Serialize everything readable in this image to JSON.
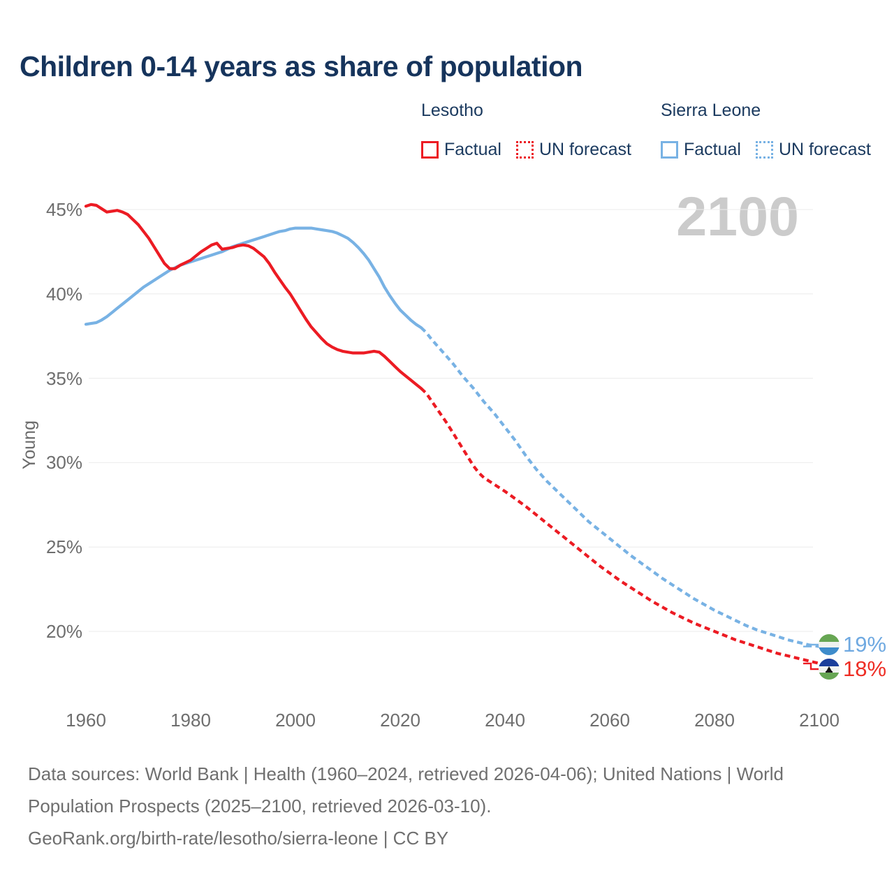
{
  "title": "Children 0-14 years as share of population",
  "watermark": "2100",
  "colors": {
    "lesotho": "#EC1B23",
    "sierra_leone": "#78B2E4",
    "title_navy": "#16345C",
    "axis_gray": "#6E6E6E",
    "watermark_gray": "#CBCBCB",
    "gridline": "#EBEBEB",
    "end_label_blue": "#6FA9E1",
    "end_label_red": "#EE2D24"
  },
  "legend": {
    "lesotho": {
      "title": "Lesotho",
      "factual": "Factual",
      "forecast": "UN forecast"
    },
    "sierra_leone": {
      "title": "Sierra Leone",
      "factual": "Factual",
      "forecast": "UN forecast"
    }
  },
  "chart_data": {
    "type": "line",
    "title": "Children 0-14 years as share of population",
    "xlabel": "",
    "ylabel": "Young",
    "xlim": [
      1960,
      2100
    ],
    "ylim": [
      17.5,
      46
    ],
    "grid": "horizontal",
    "legend_position": "top-right",
    "yticks": [
      {
        "value": 45,
        "label": "45%"
      },
      {
        "value": 40,
        "label": "40%"
      },
      {
        "value": 35,
        "label": "35%"
      },
      {
        "value": 30,
        "label": "30%"
      },
      {
        "value": 25,
        "label": "25%"
      },
      {
        "value": 20,
        "label": "20%"
      }
    ],
    "xticks": [
      {
        "value": 1960,
        "label": "1960"
      },
      {
        "value": 1980,
        "label": "1980"
      },
      {
        "value": 2000,
        "label": "2000"
      },
      {
        "value": 2020,
        "label": "2020"
      },
      {
        "value": 2040,
        "label": "2040"
      },
      {
        "value": 2060,
        "label": "2060"
      },
      {
        "value": 2080,
        "label": "2080"
      },
      {
        "value": 2100,
        "label": "2100"
      }
    ],
    "series": [
      {
        "id": "sierra-leone-factual",
        "name": "Sierra Leone — Factual",
        "color": "#78B2E4",
        "style": "solid",
        "points": [
          [
            1960,
            38.2
          ],
          [
            1961,
            38.25
          ],
          [
            1962,
            38.3
          ],
          [
            1963,
            38.45
          ],
          [
            1964,
            38.65
          ],
          [
            1965,
            38.9
          ],
          [
            1966,
            39.15
          ],
          [
            1967,
            39.4
          ],
          [
            1968,
            39.65
          ],
          [
            1969,
            39.9
          ],
          [
            1970,
            40.15
          ],
          [
            1971,
            40.4
          ],
          [
            1972,
            40.6
          ],
          [
            1973,
            40.8
          ],
          [
            1974,
            41.0
          ],
          [
            1975,
            41.2
          ],
          [
            1976,
            41.4
          ],
          [
            1977,
            41.55
          ],
          [
            1978,
            41.7
          ],
          [
            1979,
            41.8
          ],
          [
            1980,
            41.9
          ],
          [
            1981,
            42.0
          ],
          [
            1982,
            42.1
          ],
          [
            1983,
            42.2
          ],
          [
            1984,
            42.3
          ],
          [
            1985,
            42.4
          ],
          [
            1986,
            42.5
          ],
          [
            1987,
            42.65
          ],
          [
            1988,
            42.8
          ],
          [
            1989,
            42.9
          ],
          [
            1990,
            43.0
          ],
          [
            1991,
            43.1
          ],
          [
            1992,
            43.2
          ],
          [
            1993,
            43.3
          ],
          [
            1994,
            43.4
          ],
          [
            1995,
            43.5
          ],
          [
            1996,
            43.6
          ],
          [
            1997,
            43.7
          ],
          [
            1998,
            43.75
          ],
          [
            1999,
            43.85
          ],
          [
            2000,
            43.9
          ],
          [
            2001,
            43.9
          ],
          [
            2002,
            43.9
          ],
          [
            2003,
            43.9
          ],
          [
            2004,
            43.85
          ],
          [
            2005,
            43.8
          ],
          [
            2006,
            43.75
          ],
          [
            2007,
            43.7
          ],
          [
            2008,
            43.6
          ],
          [
            2009,
            43.45
          ],
          [
            2010,
            43.3
          ],
          [
            2011,
            43.05
          ],
          [
            2012,
            42.75
          ],
          [
            2013,
            42.4
          ],
          [
            2014,
            42.0
          ],
          [
            2015,
            41.5
          ],
          [
            2016,
            41.0
          ],
          [
            2017,
            40.4
          ],
          [
            2018,
            39.9
          ],
          [
            2019,
            39.45
          ],
          [
            2020,
            39.05
          ],
          [
            2021,
            38.75
          ],
          [
            2022,
            38.45
          ],
          [
            2023,
            38.2
          ],
          [
            2024,
            38.0
          ]
        ]
      },
      {
        "id": "sierra-leone-forecast",
        "name": "Sierra Leone — UN forecast",
        "color": "#78B2E4",
        "style": "dashed",
        "points": [
          [
            2024,
            38.0
          ],
          [
            2025,
            37.7
          ],
          [
            2026,
            37.3
          ],
          [
            2027,
            36.95
          ],
          [
            2028,
            36.6
          ],
          [
            2029,
            36.25
          ],
          [
            2030,
            35.9
          ],
          [
            2031,
            35.5
          ],
          [
            2032,
            35.1
          ],
          [
            2033,
            34.75
          ],
          [
            2034,
            34.4
          ],
          [
            2035,
            34.0
          ],
          [
            2036,
            33.6
          ],
          [
            2038,
            32.9
          ],
          [
            2040,
            32.1
          ],
          [
            2042,
            31.3
          ],
          [
            2044,
            30.4
          ],
          [
            2046,
            29.6
          ],
          [
            2048,
            28.9
          ],
          [
            2050,
            28.3
          ],
          [
            2052,
            27.7
          ],
          [
            2054,
            27.1
          ],
          [
            2056,
            26.5
          ],
          [
            2058,
            26.0
          ],
          [
            2060,
            25.5
          ],
          [
            2062,
            25.0
          ],
          [
            2064,
            24.5
          ],
          [
            2066,
            24.05
          ],
          [
            2068,
            23.6
          ],
          [
            2070,
            23.15
          ],
          [
            2072,
            22.75
          ],
          [
            2074,
            22.35
          ],
          [
            2076,
            21.95
          ],
          [
            2078,
            21.6
          ],
          [
            2080,
            21.25
          ],
          [
            2082,
            20.95
          ],
          [
            2084,
            20.65
          ],
          [
            2086,
            20.35
          ],
          [
            2088,
            20.1
          ],
          [
            2090,
            19.9
          ],
          [
            2092,
            19.7
          ],
          [
            2094,
            19.5
          ],
          [
            2096,
            19.35
          ],
          [
            2098,
            19.2
          ],
          [
            2100,
            19.1
          ]
        ]
      },
      {
        "id": "lesotho-factual",
        "name": "Lesotho — Factual",
        "color": "#EC1B23",
        "style": "solid",
        "points": [
          [
            1960,
            45.2
          ],
          [
            1961,
            45.3
          ],
          [
            1962,
            45.25
          ],
          [
            1963,
            45.05
          ],
          [
            1964,
            44.85
          ],
          [
            1965,
            44.9
          ],
          [
            1966,
            44.95
          ],
          [
            1967,
            44.85
          ],
          [
            1968,
            44.7
          ],
          [
            1969,
            44.4
          ],
          [
            1970,
            44.1
          ],
          [
            1971,
            43.7
          ],
          [
            1972,
            43.3
          ],
          [
            1973,
            42.8
          ],
          [
            1974,
            42.3
          ],
          [
            1975,
            41.8
          ],
          [
            1976,
            41.5
          ],
          [
            1977,
            41.5
          ],
          [
            1978,
            41.7
          ],
          [
            1979,
            41.85
          ],
          [
            1980,
            42.0
          ],
          [
            1981,
            42.25
          ],
          [
            1982,
            42.5
          ],
          [
            1983,
            42.7
          ],
          [
            1984,
            42.9
          ],
          [
            1985,
            43.0
          ],
          [
            1986,
            42.65
          ],
          [
            1987,
            42.7
          ],
          [
            1988,
            42.75
          ],
          [
            1989,
            42.85
          ],
          [
            1990,
            42.9
          ],
          [
            1991,
            42.85
          ],
          [
            1992,
            42.7
          ],
          [
            1993,
            42.45
          ],
          [
            1994,
            42.2
          ],
          [
            1995,
            41.8
          ],
          [
            1996,
            41.3
          ],
          [
            1997,
            40.85
          ],
          [
            1998,
            40.4
          ],
          [
            1999,
            40.0
          ],
          [
            2000,
            39.5
          ],
          [
            2001,
            39.0
          ],
          [
            2002,
            38.5
          ],
          [
            2003,
            38.05
          ],
          [
            2004,
            37.7
          ],
          [
            2005,
            37.35
          ],
          [
            2006,
            37.05
          ],
          [
            2007,
            36.85
          ],
          [
            2008,
            36.7
          ],
          [
            2009,
            36.6
          ],
          [
            2010,
            36.55
          ],
          [
            2011,
            36.5
          ],
          [
            2012,
            36.5
          ],
          [
            2013,
            36.5
          ],
          [
            2014,
            36.55
          ],
          [
            2015,
            36.6
          ],
          [
            2016,
            36.55
          ],
          [
            2017,
            36.3
          ],
          [
            2018,
            36.0
          ],
          [
            2019,
            35.7
          ],
          [
            2020,
            35.4
          ],
          [
            2021,
            35.15
          ],
          [
            2022,
            34.9
          ],
          [
            2023,
            34.65
          ],
          [
            2024,
            34.4
          ]
        ]
      },
      {
        "id": "lesotho-forecast",
        "name": "Lesotho — UN forecast",
        "color": "#EC1B23",
        "style": "dashed",
        "points": [
          [
            2024,
            34.4
          ],
          [
            2025,
            34.1
          ],
          [
            2026,
            33.65
          ],
          [
            2027,
            33.2
          ],
          [
            2028,
            32.75
          ],
          [
            2029,
            32.3
          ],
          [
            2030,
            31.8
          ],
          [
            2031,
            31.3
          ],
          [
            2032,
            30.8
          ],
          [
            2033,
            30.3
          ],
          [
            2034,
            29.8
          ],
          [
            2035,
            29.4
          ],
          [
            2036,
            29.1
          ],
          [
            2038,
            28.7
          ],
          [
            2040,
            28.3
          ],
          [
            2042,
            27.85
          ],
          [
            2044,
            27.4
          ],
          [
            2046,
            26.9
          ],
          [
            2048,
            26.4
          ],
          [
            2050,
            25.9
          ],
          [
            2052,
            25.4
          ],
          [
            2054,
            24.9
          ],
          [
            2056,
            24.4
          ],
          [
            2058,
            23.9
          ],
          [
            2060,
            23.45
          ],
          [
            2062,
            23.0
          ],
          [
            2064,
            22.6
          ],
          [
            2066,
            22.2
          ],
          [
            2068,
            21.8
          ],
          [
            2070,
            21.45
          ],
          [
            2072,
            21.1
          ],
          [
            2074,
            20.8
          ],
          [
            2076,
            20.5
          ],
          [
            2078,
            20.25
          ],
          [
            2080,
            20.0
          ],
          [
            2082,
            19.75
          ],
          [
            2084,
            19.5
          ],
          [
            2086,
            19.3
          ],
          [
            2088,
            19.1
          ],
          [
            2090,
            18.9
          ],
          [
            2092,
            18.7
          ],
          [
            2094,
            18.55
          ],
          [
            2096,
            18.4
          ],
          [
            2098,
            18.25
          ],
          [
            2100,
            18.1
          ]
        ]
      }
    ],
    "end_labels": [
      {
        "country": "Sierra Leone",
        "label": "19%"
      },
      {
        "country": "Lesotho",
        "label": "18%"
      }
    ]
  },
  "footer": {
    "lines": [
      "Data sources: World Bank | Health (1960–2024, retrieved 2026-04-06); United Nations | World",
      "Population Prospects (2025–2100, retrieved 2026-03-10).",
      "GeoRank.org/birth-rate/lesotho/sierra-leone | CC BY"
    ]
  }
}
